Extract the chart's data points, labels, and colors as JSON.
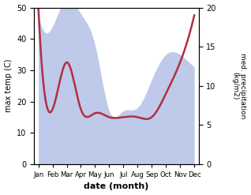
{
  "months": [
    "Jan",
    "Feb",
    "Mar",
    "Apr",
    "May",
    "Jun",
    "Jul",
    "Aug",
    "Sep",
    "Oct",
    "Nov",
    "Dec"
  ],
  "temp_x": [
    0,
    1,
    2,
    3,
    4,
    5,
    6,
    7,
    8,
    9,
    10,
    11
  ],
  "temp_y": [
    48,
    44,
    53,
    48,
    38,
    17,
    17,
    18,
    27,
    35,
    35,
    31
  ],
  "precip_x": [
    0,
    1,
    2,
    3,
    4,
    5,
    6,
    7,
    8,
    9,
    10,
    11
  ],
  "precip_y": [
    20,
    7,
    13,
    7,
    6.5,
    6,
    6,
    6,
    6,
    9,
    13,
    19
  ],
  "temp_fill_color": "#b8c4e8",
  "precip_color": "#b03040",
  "ylim_temp": [
    0,
    50
  ],
  "ylim_precip": [
    0,
    20
  ],
  "yticks_temp": [
    0,
    10,
    20,
    30,
    40,
    50
  ],
  "yticks_precip": [
    0,
    5,
    10,
    15,
    20
  ],
  "ylabel_left": "max temp (C)",
  "ylabel_right": "med. precipitation\n(kg/m2)",
  "xlabel": "date (month)",
  "background_color": "#ffffff"
}
